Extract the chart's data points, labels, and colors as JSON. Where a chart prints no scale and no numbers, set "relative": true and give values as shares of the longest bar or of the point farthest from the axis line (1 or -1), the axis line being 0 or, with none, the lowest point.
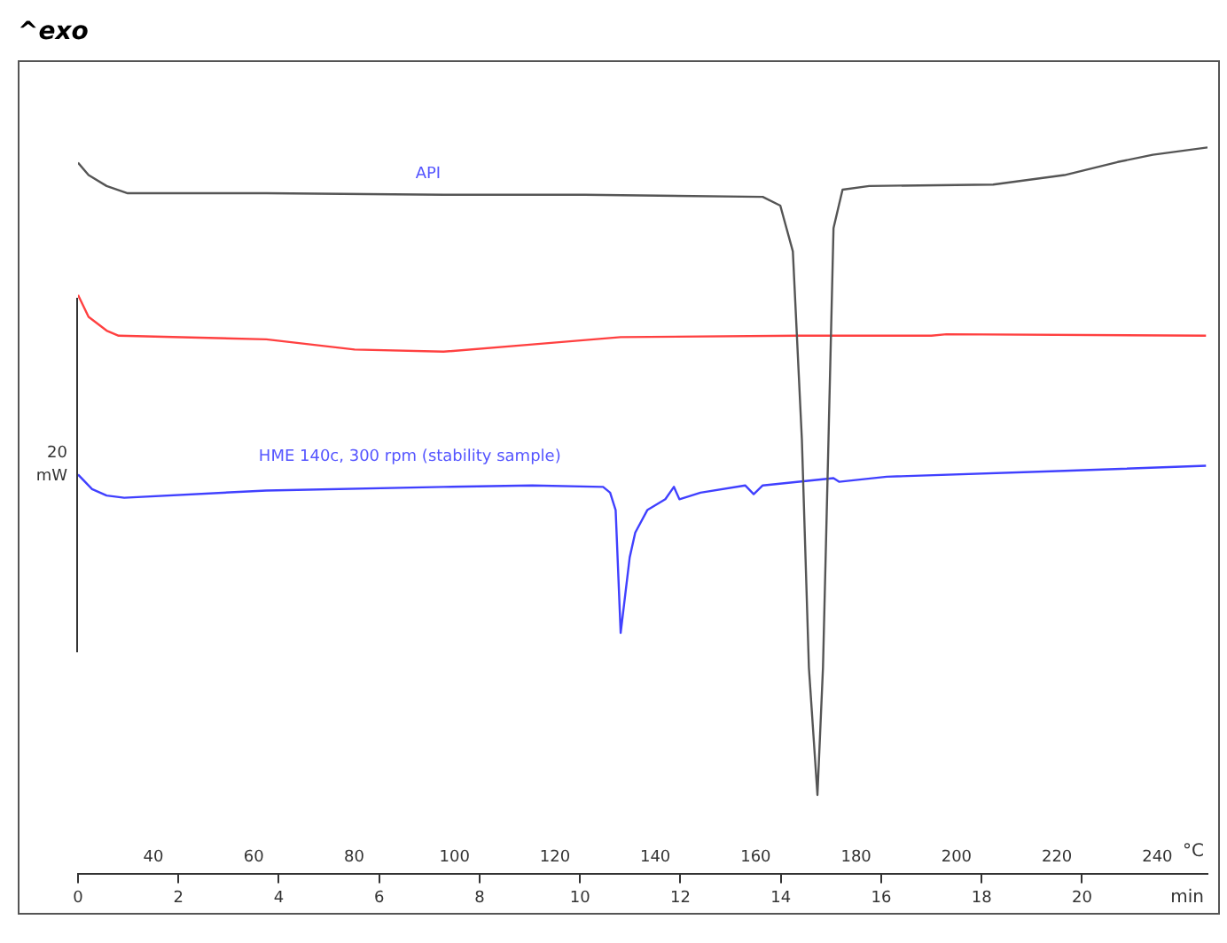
{
  "chart_data": {
    "type": "line",
    "relative": true,
    "annotations": [
      "^exo",
      "20 mW"
    ],
    "xlabel": "min",
    "x2label": "°C",
    "xlim": [
      0,
      22.5
    ],
    "xticks": [
      0,
      2,
      4,
      6,
      8,
      10,
      12,
      14,
      16,
      18,
      20
    ],
    "x2lim": [
      25,
      250
    ],
    "x2ticks": [
      40,
      60,
      80,
      100,
      120,
      140,
      160,
      180,
      200,
      220,
      240
    ],
    "grid": false,
    "legend": false,
    "marker": "none",
    "line_style": "solid",
    "series": [
      {
        "name": "API",
        "color": "#555555",
        "x": [
          0,
          0.21,
          0.57,
          0.99,
          3.75,
          7.28,
          10.1,
          13.64,
          13.99,
          14.24,
          14.42,
          14.56,
          14.73,
          14.84,
          14.95,
          15.05,
          15.23,
          15.76,
          18.23,
          19.65,
          20.71,
          21.41,
          22.5
        ],
        "values": [
          0.979,
          0.962,
          0.947,
          0.937,
          0.937,
          0.935,
          0.935,
          0.932,
          0.92,
          0.857,
          0.598,
          0.284,
          0.109,
          0.284,
          0.598,
          0.889,
          0.942,
          0.947,
          0.949,
          0.962,
          0.98,
          0.99,
          1
        ]
      },
      {
        "color": "#ff4040",
        "x": [
          0,
          0.21,
          0.57,
          0.81,
          3.75,
          5.51,
          7.28,
          9.05,
          10.81,
          14.35,
          17.0,
          17.3,
          22.47
        ],
        "values": [
          0.797,
          0.767,
          0.748,
          0.741,
          0.736,
          0.722,
          0.719,
          0.729,
          0.739,
          0.741,
          0.741,
          0.743,
          0.741
        ]
      },
      {
        "name": "HME 140c, 300 rpm (stability sample)",
        "color": "#4040ff",
        "x": [
          0,
          0.28,
          0.57,
          0.92,
          3.75,
          7.28,
          9.05,
          10.46,
          10.6,
          10.71,
          10.81,
          10.99,
          11.1,
          11.34,
          11.7,
          11.87,
          11.98,
          12.4,
          13.29,
          13.46,
          13.64,
          15.05,
          15.16,
          16.11,
          19.65,
          22.47
        ],
        "values": [
          0.55,
          0.53,
          0.521,
          0.518,
          0.528,
          0.533,
          0.535,
          0.533,
          0.525,
          0.501,
          0.332,
          0.436,
          0.47,
          0.501,
          0.516,
          0.533,
          0.516,
          0.525,
          0.535,
          0.523,
          0.535,
          0.545,
          0.54,
          0.547,
          0.555,
          0.562
        ]
      }
    ]
  }
}
